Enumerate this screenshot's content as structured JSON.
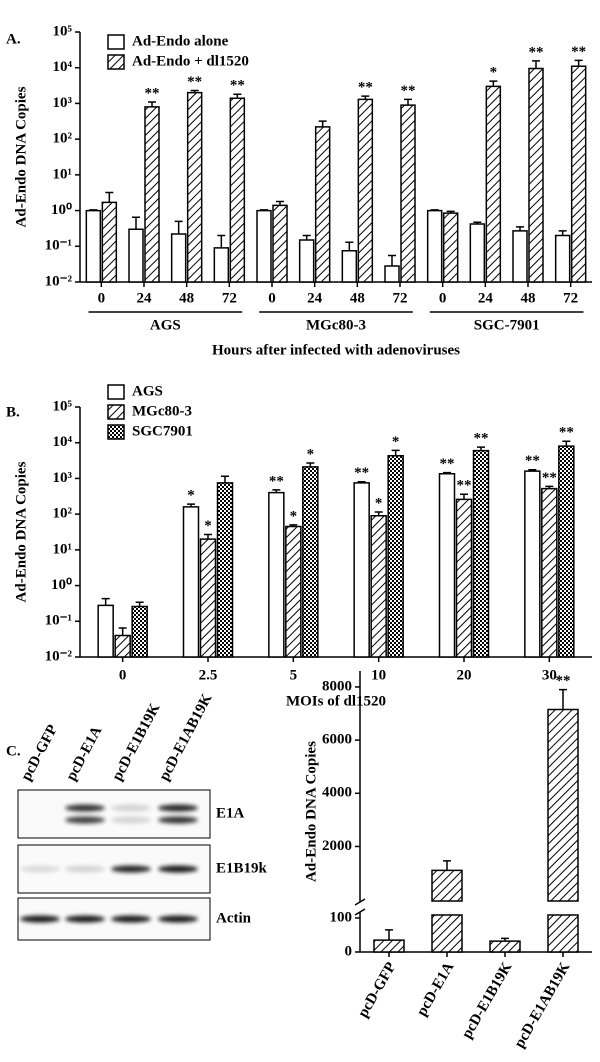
{
  "chart_data": [
    {
      "panel": "A.",
      "type": "bar",
      "log": true,
      "legend": "upper left",
      "ylabel": "Ad-Endo DNA Copies",
      "xlabel": "Hours after infected with adenoviruses",
      "categories": [
        "0",
        "24",
        "48",
        "72",
        "0",
        "24",
        "48",
        "72",
        "0",
        "24",
        "48",
        "72"
      ],
      "groups": [
        "AGS",
        "MGc80-3",
        "SGC-7901"
      ],
      "ylim": [
        0.01,
        100000
      ],
      "yticks": [
        {
          "value": 0.01,
          "label": "10⁻²"
        },
        {
          "value": 0.1,
          "label": "10⁻¹"
        },
        {
          "value": 1,
          "label": "10⁰"
        },
        {
          "value": 10,
          "label": "10¹"
        },
        {
          "value": 100,
          "label": "10²"
        },
        {
          "value": 1000,
          "label": "10³"
        },
        {
          "value": 10000,
          "label": "10⁴"
        },
        {
          "value": 100000,
          "label": "10⁵"
        }
      ],
      "series": [
        {
          "name": "Ad-Endo alone",
          "pattern": "none",
          "values": [
            1.0,
            0.3,
            0.22,
            0.09,
            1.0,
            0.15,
            0.075,
            0.028,
            1.0,
            0.42,
            0.27,
            0.2
          ],
          "errors": [
            0.05,
            0.35,
            0.28,
            0.11,
            0.05,
            0.05,
            0.055,
            0.027,
            0.05,
            0.05,
            0.08,
            0.07
          ],
          "significance": [
            null,
            null,
            null,
            null,
            null,
            null,
            null,
            null,
            null,
            null,
            null,
            null
          ]
        },
        {
          "name": "Ad-Endo + dl1520",
          "pattern": "hatch",
          "values": [
            1.7,
            800,
            2000,
            1400,
            1.4,
            220,
            1300,
            900,
            0.85,
            3000,
            9500,
            11000
          ],
          "errors": [
            1.5,
            300,
            300,
            400,
            0.4,
            100,
            300,
            400,
            0.1,
            1200,
            6000,
            5000
          ],
          "significance": [
            null,
            "**",
            "**",
            "**",
            null,
            null,
            "**",
            "**",
            null,
            "*",
            "**",
            "**"
          ]
        }
      ]
    },
    {
      "panel": "B.",
      "type": "bar",
      "log": true,
      "legend": "upper left",
      "ylabel": "Ad-Endo DNA Copies",
      "xlabel": "MOIs of dl1520",
      "categories": [
        "0",
        "2.5",
        "5",
        "10",
        "20",
        "30"
      ],
      "ylim": [
        0.01,
        100000
      ],
      "yticks": [
        {
          "value": 0.01,
          "label": "10⁻²"
        },
        {
          "value": 0.1,
          "label": "10⁻¹"
        },
        {
          "value": 1,
          "label": "10⁰"
        },
        {
          "value": 10,
          "label": "10¹"
        },
        {
          "value": 100,
          "label": "10²"
        },
        {
          "value": 1000,
          "label": "10³"
        },
        {
          "value": 10000,
          "label": "10⁴"
        },
        {
          "value": 100000,
          "label": "10⁵"
        }
      ],
      "series": [
        {
          "name": "AGS",
          "pattern": "none",
          "values": [
            0.28,
            160,
            400,
            750,
            1350,
            1600
          ],
          "errors": [
            0.15,
            30,
            80,
            60,
            100,
            150
          ],
          "significance": [
            null,
            "*",
            "**",
            "**",
            "**",
            "**"
          ]
        },
        {
          "name": "MGc80-3",
          "pattern": "hatch",
          "values": [
            0.04,
            20,
            45,
            90,
            260,
            520
          ],
          "errors": [
            0.025,
            7,
            5,
            25,
            100,
            80
          ],
          "significance": [
            null,
            "*",
            "*",
            "*",
            "**",
            "**"
          ]
        },
        {
          "name": "SGC7901",
          "pattern": "check",
          "values": [
            0.26,
            750,
            2100,
            4300,
            6000,
            8000
          ],
          "errors": [
            0.08,
            400,
            600,
            1800,
            1500,
            3000
          ],
          "significance": [
            null,
            null,
            "*",
            "*",
            "**",
            "**"
          ]
        }
      ]
    },
    {
      "panel": "C.",
      "type": "bar",
      "log": false,
      "axis_break": 100,
      "xtick_rotation": -60,
      "ylabel": "Ad-Endo DNA Copies",
      "categories": [
        "pcD-GFP",
        "pcD-E1A",
        "pcD-E1B19K",
        "pcD-E1AB19K"
      ],
      "ylim": [
        0,
        8600
      ],
      "yticks": [
        0,
        100,
        2000,
        4000,
        6000,
        8000
      ],
      "series": [
        {
          "pattern": "hatch",
          "values": [
            35,
            1100,
            32,
            7150
          ],
          "errors": [
            30,
            360,
            8,
            750
          ],
          "significance": [
            null,
            null,
            null,
            "**"
          ]
        }
      ]
    }
  ],
  "blot": {
    "lanes": [
      "pcD-GFP",
      "pcD-E1A",
      "pcD-E1B19K",
      "pcD-E1AB19K"
    ],
    "bands": [
      "E1A",
      "E1B19k",
      "Actin"
    ]
  }
}
